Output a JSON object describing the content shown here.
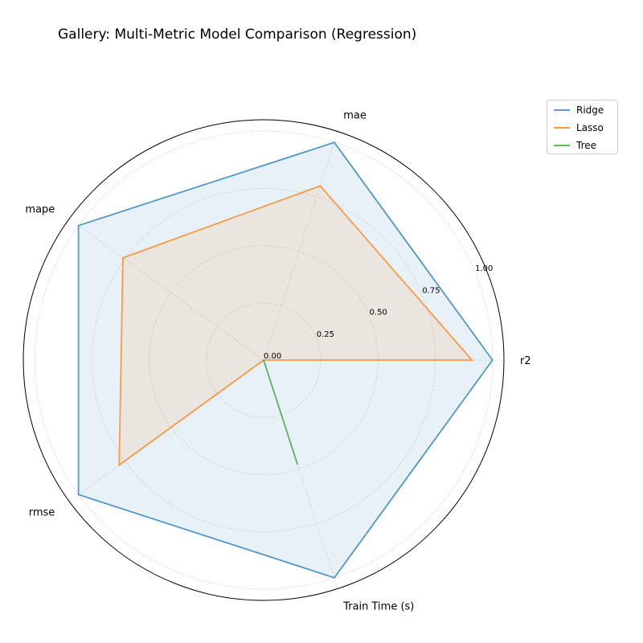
{
  "chart_data": {
    "type": "radar",
    "title": "Gallery: Multi-Metric Model Comparison (Regression)",
    "axes": [
      "r2",
      "mae",
      "mape",
      "rmse",
      "Train Time (s)"
    ],
    "radial_ticks": [
      "0.00",
      "0.25",
      "0.50",
      "0.75",
      "1.00"
    ],
    "rlim": [
      0,
      1.05
    ],
    "series": [
      {
        "name": "Ridge",
        "color": "#1f77b4",
        "values": [
          1.0,
          1.0,
          1.0,
          1.0,
          1.0
        ],
        "filled": true
      },
      {
        "name": "Lasso",
        "color": "#ff7f0e",
        "values": [
          0.91,
          0.8,
          0.76,
          0.78,
          0.0
        ],
        "filled": true
      },
      {
        "name": "Tree",
        "color": "#2ca02c",
        "values": [
          0.0,
          0.0,
          0.0,
          0.0,
          0.48
        ],
        "filled": false
      }
    ],
    "grid": true,
    "legend_position": "upper-right outside"
  }
}
